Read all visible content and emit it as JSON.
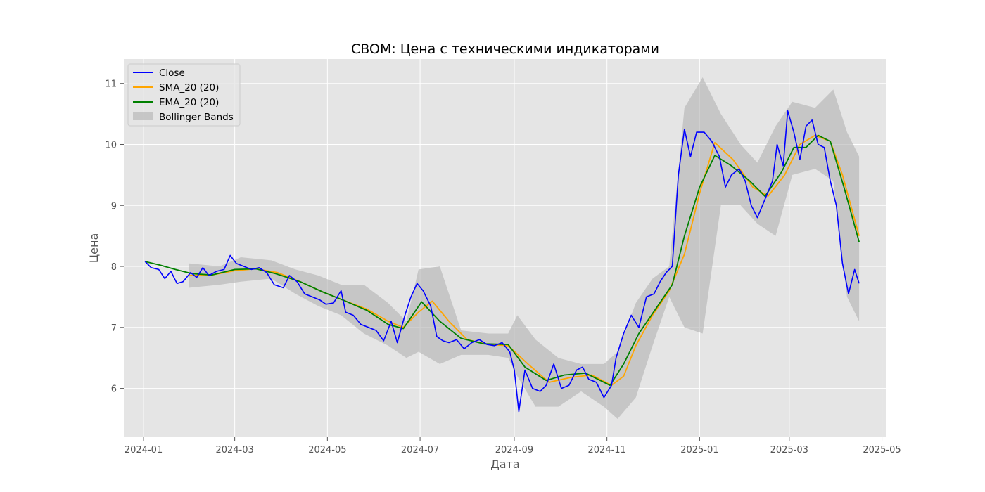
{
  "chart_data": {
    "type": "line",
    "title": "CBOM: Цена с техническими индикаторами",
    "xlabel": "Дата",
    "ylabel": "Цена",
    "x_ticks": [
      "2024-01",
      "2024-03",
      "2024-05",
      "2024-07",
      "2024-09",
      "2024-11",
      "2025-01",
      "2025-03",
      "2025-05"
    ],
    "y_ticks": [
      6,
      7,
      8,
      9,
      10,
      11
    ],
    "xlim": [
      "2023-12-19",
      "2025-05-04"
    ],
    "ylim": [
      5.2,
      11.4
    ],
    "grid": true,
    "legend_position": "top-left",
    "colors": {
      "close": "#0000ff",
      "sma": "#ffa500",
      "ema": "#008000",
      "bands": "#b0b0b0",
      "background": "#e5e5e5",
      "grid": "#ffffff"
    },
    "series": [
      {
        "name": "Close",
        "key": "close",
        "points": [
          [
            "2024-01-02",
            8.08
          ],
          [
            "2024-01-06",
            7.98
          ],
          [
            "2024-01-11",
            7.95
          ],
          [
            "2024-01-15",
            7.8
          ],
          [
            "2024-01-19",
            7.92
          ],
          [
            "2024-01-23",
            7.72
          ],
          [
            "2024-01-27",
            7.75
          ],
          [
            "2024-02-01",
            7.9
          ],
          [
            "2024-02-05",
            7.82
          ],
          [
            "2024-02-09",
            7.98
          ],
          [
            "2024-02-13",
            7.85
          ],
          [
            "2024-02-18",
            7.92
          ],
          [
            "2024-02-23",
            7.95
          ],
          [
            "2024-02-27",
            8.18
          ],
          [
            "2024-03-02",
            8.05
          ],
          [
            "2024-03-07",
            8.0
          ],
          [
            "2024-03-12",
            7.95
          ],
          [
            "2024-03-17",
            7.98
          ],
          [
            "2024-03-22",
            7.9
          ],
          [
            "2024-03-27",
            7.7
          ],
          [
            "2024-04-02",
            7.65
          ],
          [
            "2024-04-06",
            7.85
          ],
          [
            "2024-04-11",
            7.75
          ],
          [
            "2024-04-16",
            7.55
          ],
          [
            "2024-04-21",
            7.5
          ],
          [
            "2024-04-26",
            7.45
          ],
          [
            "2024-04-30",
            7.38
          ],
          [
            "2024-05-05",
            7.4
          ],
          [
            "2024-05-10",
            7.6
          ],
          [
            "2024-05-13",
            7.25
          ],
          [
            "2024-05-18",
            7.2
          ],
          [
            "2024-05-23",
            7.05
          ],
          [
            "2024-05-28",
            7.0
          ],
          [
            "2024-06-02",
            6.95
          ],
          [
            "2024-06-07",
            6.78
          ],
          [
            "2024-06-12",
            7.1
          ],
          [
            "2024-06-16",
            6.75
          ],
          [
            "2024-06-21",
            7.2
          ],
          [
            "2024-06-25",
            7.5
          ],
          [
            "2024-06-29",
            7.72
          ],
          [
            "2024-07-03",
            7.6
          ],
          [
            "2024-07-08",
            7.35
          ],
          [
            "2024-07-12",
            6.85
          ],
          [
            "2024-07-16",
            6.78
          ],
          [
            "2024-07-20",
            6.75
          ],
          [
            "2024-07-25",
            6.8
          ],
          [
            "2024-07-30",
            6.65
          ],
          [
            "2024-08-04",
            6.75
          ],
          [
            "2024-08-09",
            6.8
          ],
          [
            "2024-08-14",
            6.72
          ],
          [
            "2024-08-19",
            6.7
          ],
          [
            "2024-08-24",
            6.75
          ],
          [
            "2024-08-29",
            6.6
          ],
          [
            "2024-09-01",
            6.3
          ],
          [
            "2024-09-04",
            5.62
          ],
          [
            "2024-09-08",
            6.3
          ],
          [
            "2024-09-13",
            6.0
          ],
          [
            "2024-09-18",
            5.95
          ],
          [
            "2024-09-22",
            6.05
          ],
          [
            "2024-09-27",
            6.4
          ],
          [
            "2024-10-02",
            6.0
          ],
          [
            "2024-10-07",
            6.05
          ],
          [
            "2024-10-12",
            6.3
          ],
          [
            "2024-10-16",
            6.35
          ],
          [
            "2024-10-20",
            6.15
          ],
          [
            "2024-10-25",
            6.1
          ],
          [
            "2024-10-30",
            5.85
          ],
          [
            "2024-11-04",
            6.05
          ],
          [
            "2024-11-07",
            6.5
          ],
          [
            "2024-11-12",
            6.9
          ],
          [
            "2024-11-17",
            7.2
          ],
          [
            "2024-11-22",
            7.0
          ],
          [
            "2024-11-27",
            7.5
          ],
          [
            "2024-12-02",
            7.55
          ],
          [
            "2024-12-06",
            7.75
          ],
          [
            "2024-12-10",
            7.9
          ],
          [
            "2024-12-14",
            8.0
          ],
          [
            "2024-12-18",
            9.5
          ],
          [
            "2024-12-22",
            10.25
          ],
          [
            "2024-12-26",
            9.8
          ],
          [
            "2024-12-30",
            10.2
          ],
          [
            "2025-01-04",
            10.2
          ],
          [
            "2025-01-09",
            10.05
          ],
          [
            "2025-01-14",
            9.8
          ],
          [
            "2025-01-18",
            9.3
          ],
          [
            "2025-01-22",
            9.5
          ],
          [
            "2025-01-27",
            9.6
          ],
          [
            "2025-01-31",
            9.4
          ],
          [
            "2025-02-04",
            9.0
          ],
          [
            "2025-02-08",
            8.8
          ],
          [
            "2025-02-13",
            9.1
          ],
          [
            "2025-02-18",
            9.4
          ],
          [
            "2025-02-21",
            10.0
          ],
          [
            "2025-02-25",
            9.65
          ],
          [
            "2025-02-28",
            10.55
          ],
          [
            "2025-03-04",
            10.2
          ],
          [
            "2025-03-08",
            9.75
          ],
          [
            "2025-03-12",
            10.3
          ],
          [
            "2025-03-16",
            10.4
          ],
          [
            "2025-03-20",
            10.0
          ],
          [
            "2025-03-24",
            9.95
          ],
          [
            "2025-03-28",
            9.4
          ],
          [
            "2025-04-01",
            9.0
          ],
          [
            "2025-04-05",
            8.05
          ],
          [
            "2025-04-09",
            7.55
          ],
          [
            "2025-04-13",
            7.95
          ],
          [
            "2025-04-16",
            7.72
          ]
        ]
      },
      {
        "name": "SMA_20 (20)",
        "key": "sma",
        "points": [
          [
            "2024-01-31",
            7.85
          ],
          [
            "2024-02-15",
            7.86
          ],
          [
            "2024-03-01",
            7.93
          ],
          [
            "2024-03-15",
            7.96
          ],
          [
            "2024-03-29",
            7.9
          ],
          [
            "2024-04-13",
            7.75
          ],
          [
            "2024-04-28",
            7.58
          ],
          [
            "2024-05-12",
            7.44
          ],
          [
            "2024-05-27",
            7.3
          ],
          [
            "2024-06-10",
            7.1
          ],
          [
            "2024-06-20",
            7.0
          ],
          [
            "2024-06-30",
            7.25
          ],
          [
            "2024-07-09",
            7.43
          ],
          [
            "2024-07-20",
            7.1
          ],
          [
            "2024-08-01",
            6.8
          ],
          [
            "2024-08-15",
            6.72
          ],
          [
            "2024-08-28",
            6.7
          ],
          [
            "2024-09-10",
            6.4
          ],
          [
            "2024-09-24",
            6.1
          ],
          [
            "2024-10-08",
            6.18
          ],
          [
            "2024-10-22",
            6.22
          ],
          [
            "2024-11-04",
            6.05
          ],
          [
            "2024-11-12",
            6.2
          ],
          [
            "2024-11-20",
            6.7
          ],
          [
            "2024-12-01",
            7.2
          ],
          [
            "2024-12-12",
            7.6
          ],
          [
            "2024-12-22",
            8.2
          ],
          [
            "2025-01-01",
            9.2
          ],
          [
            "2025-01-11",
            10.03
          ],
          [
            "2025-01-23",
            9.75
          ],
          [
            "2025-02-05",
            9.3
          ],
          [
            "2025-02-15",
            9.15
          ],
          [
            "2025-02-26",
            9.5
          ],
          [
            "2025-03-08",
            10.0
          ],
          [
            "2025-03-18",
            10.15
          ],
          [
            "2025-03-28",
            10.05
          ],
          [
            "2025-04-05",
            9.5
          ],
          [
            "2025-04-16",
            8.5
          ]
        ]
      },
      {
        "name": "EMA_20 (20)",
        "key": "ema",
        "points": [
          [
            "2024-01-02",
            8.08
          ],
          [
            "2024-01-12",
            8.02
          ],
          [
            "2024-01-22",
            7.95
          ],
          [
            "2024-02-02",
            7.88
          ],
          [
            "2024-02-15",
            7.86
          ],
          [
            "2024-03-01",
            7.95
          ],
          [
            "2024-03-15",
            7.96
          ],
          [
            "2024-03-28",
            7.88
          ],
          [
            "2024-04-13",
            7.75
          ],
          [
            "2024-04-28",
            7.58
          ],
          [
            "2024-05-12",
            7.44
          ],
          [
            "2024-05-27",
            7.28
          ],
          [
            "2024-06-10",
            7.05
          ],
          [
            "2024-06-20",
            6.98
          ],
          [
            "2024-07-02",
            7.42
          ],
          [
            "2024-07-14",
            7.1
          ],
          [
            "2024-07-28",
            6.82
          ],
          [
            "2024-08-12",
            6.73
          ],
          [
            "2024-08-28",
            6.72
          ],
          [
            "2024-09-08",
            6.35
          ],
          [
            "2024-09-22",
            6.13
          ],
          [
            "2024-10-04",
            6.22
          ],
          [
            "2024-10-18",
            6.25
          ],
          [
            "2024-11-03",
            6.05
          ],
          [
            "2024-11-12",
            6.4
          ],
          [
            "2024-11-22",
            6.9
          ],
          [
            "2024-12-03",
            7.3
          ],
          [
            "2024-12-14",
            7.7
          ],
          [
            "2024-12-22",
            8.5
          ],
          [
            "2025-01-01",
            9.3
          ],
          [
            "2025-01-11",
            9.82
          ],
          [
            "2025-01-22",
            9.65
          ],
          [
            "2025-02-03",
            9.4
          ],
          [
            "2025-02-13",
            9.15
          ],
          [
            "2025-02-24",
            9.55
          ],
          [
            "2025-03-04",
            9.95
          ],
          [
            "2025-03-12",
            9.95
          ],
          [
            "2025-03-20",
            10.15
          ],
          [
            "2025-03-28",
            10.05
          ],
          [
            "2025-04-06",
            9.3
          ],
          [
            "2025-04-16",
            8.4
          ]
        ]
      }
    ],
    "bands": {
      "name": "Bollinger Bands",
      "points": [
        [
          "2024-01-31",
          8.05,
          7.65
        ],
        [
          "2024-02-20",
          8.0,
          7.7
        ],
        [
          "2024-03-05",
          8.15,
          7.75
        ],
        [
          "2024-03-25",
          8.1,
          7.8
        ],
        [
          "2024-04-10",
          7.95,
          7.55
        ],
        [
          "2024-04-25",
          7.85,
          7.35
        ],
        [
          "2024-05-10",
          7.7,
          7.2
        ],
        [
          "2024-05-25",
          7.7,
          6.9
        ],
        [
          "2024-06-10",
          7.4,
          6.7
        ],
        [
          "2024-06-22",
          7.1,
          6.5
        ],
        [
          "2024-06-30",
          7.95,
          6.6
        ],
        [
          "2024-07-14",
          8.0,
          6.4
        ],
        [
          "2024-07-28",
          6.95,
          6.55
        ],
        [
          "2024-08-15",
          6.9,
          6.55
        ],
        [
          "2024-08-28",
          6.9,
          6.5
        ],
        [
          "2024-09-03",
          7.2,
          6.2
        ],
        [
          "2024-09-15",
          6.8,
          5.7
        ],
        [
          "2024-09-30",
          6.5,
          5.7
        ],
        [
          "2024-10-15",
          6.4,
          5.95
        ],
        [
          "2024-10-30",
          6.4,
          5.7
        ],
        [
          "2024-11-08",
          6.6,
          5.5
        ],
        [
          "2024-11-20",
          7.4,
          5.85
        ],
        [
          "2024-12-01",
          7.8,
          6.7
        ],
        [
          "2024-12-12",
          8.0,
          7.5
        ],
        [
          "2024-12-22",
          10.6,
          7.0
        ],
        [
          "2025-01-03",
          11.1,
          6.9
        ],
        [
          "2025-01-15",
          10.5,
          9.0
        ],
        [
          "2025-01-28",
          10.0,
          9.0
        ],
        [
          "2025-02-08",
          9.7,
          8.7
        ],
        [
          "2025-02-20",
          10.3,
          8.5
        ],
        [
          "2025-03-03",
          10.7,
          9.5
        ],
        [
          "2025-03-18",
          10.6,
          9.6
        ],
        [
          "2025-03-30",
          10.9,
          9.4
        ],
        [
          "2025-04-08",
          10.2,
          7.5
        ],
        [
          "2025-04-16",
          9.8,
          7.1
        ]
      ]
    }
  }
}
